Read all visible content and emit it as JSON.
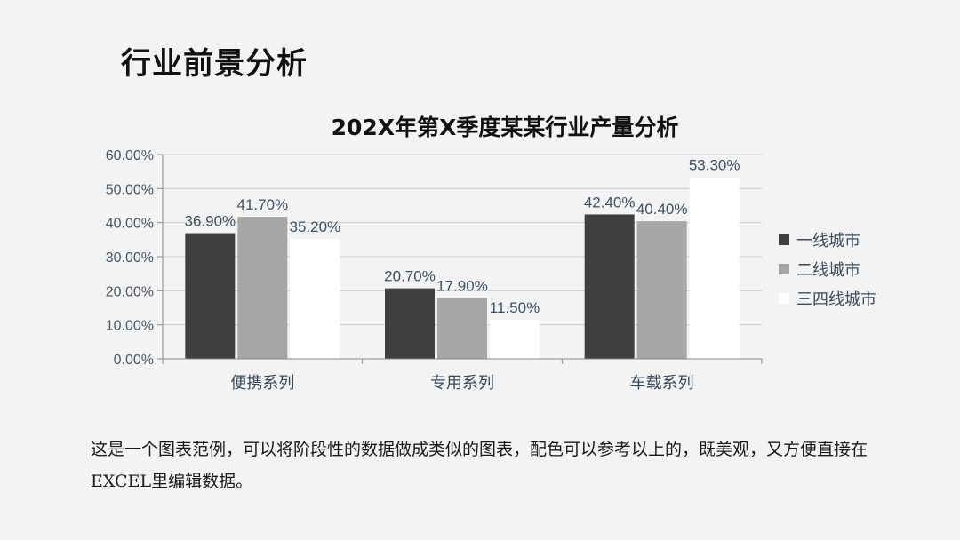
{
  "slide": {
    "title": "行业前景分析",
    "caption": "这是一个图表范例，可以将阶段性的数据做成类似的图表，配色可以参考以上的，既美观，又方便直接在EXCEL里编辑数据。"
  },
  "chart_data": {
    "type": "bar",
    "title": "202X年第X季度某某行业产量分析",
    "xlabel": "",
    "ylabel": "",
    "categories": [
      "便携系列",
      "专用系列",
      "车载系列"
    ],
    "series": [
      {
        "name": "一线城市",
        "values": [
          36.9,
          20.7,
          42.4
        ],
        "color": "#404040"
      },
      {
        "name": "二线城市",
        "values": [
          41.7,
          17.9,
          40.4
        ],
        "color": "#a6a6a6"
      },
      {
        "name": "三四线城市",
        "values": [
          35.2,
          11.5,
          53.3
        ],
        "color": "#ffffff"
      }
    ],
    "ylim": [
      0,
      60
    ],
    "yticks": [
      "0.00%",
      "10.00%",
      "20.00%",
      "30.00%",
      "40.00%",
      "50.00%",
      "60.00%"
    ],
    "data_labels": [
      [
        "36.90%",
        "20.70%",
        "42.40%"
      ],
      [
        "41.70%",
        "17.90%",
        "40.40%"
      ],
      [
        "35.20%",
        "11.50%",
        "53.30%"
      ]
    ],
    "grid": true,
    "legend": "right",
    "colors": {
      "gridline": "#cfcfcf",
      "axis": "#8a8a8a"
    }
  }
}
